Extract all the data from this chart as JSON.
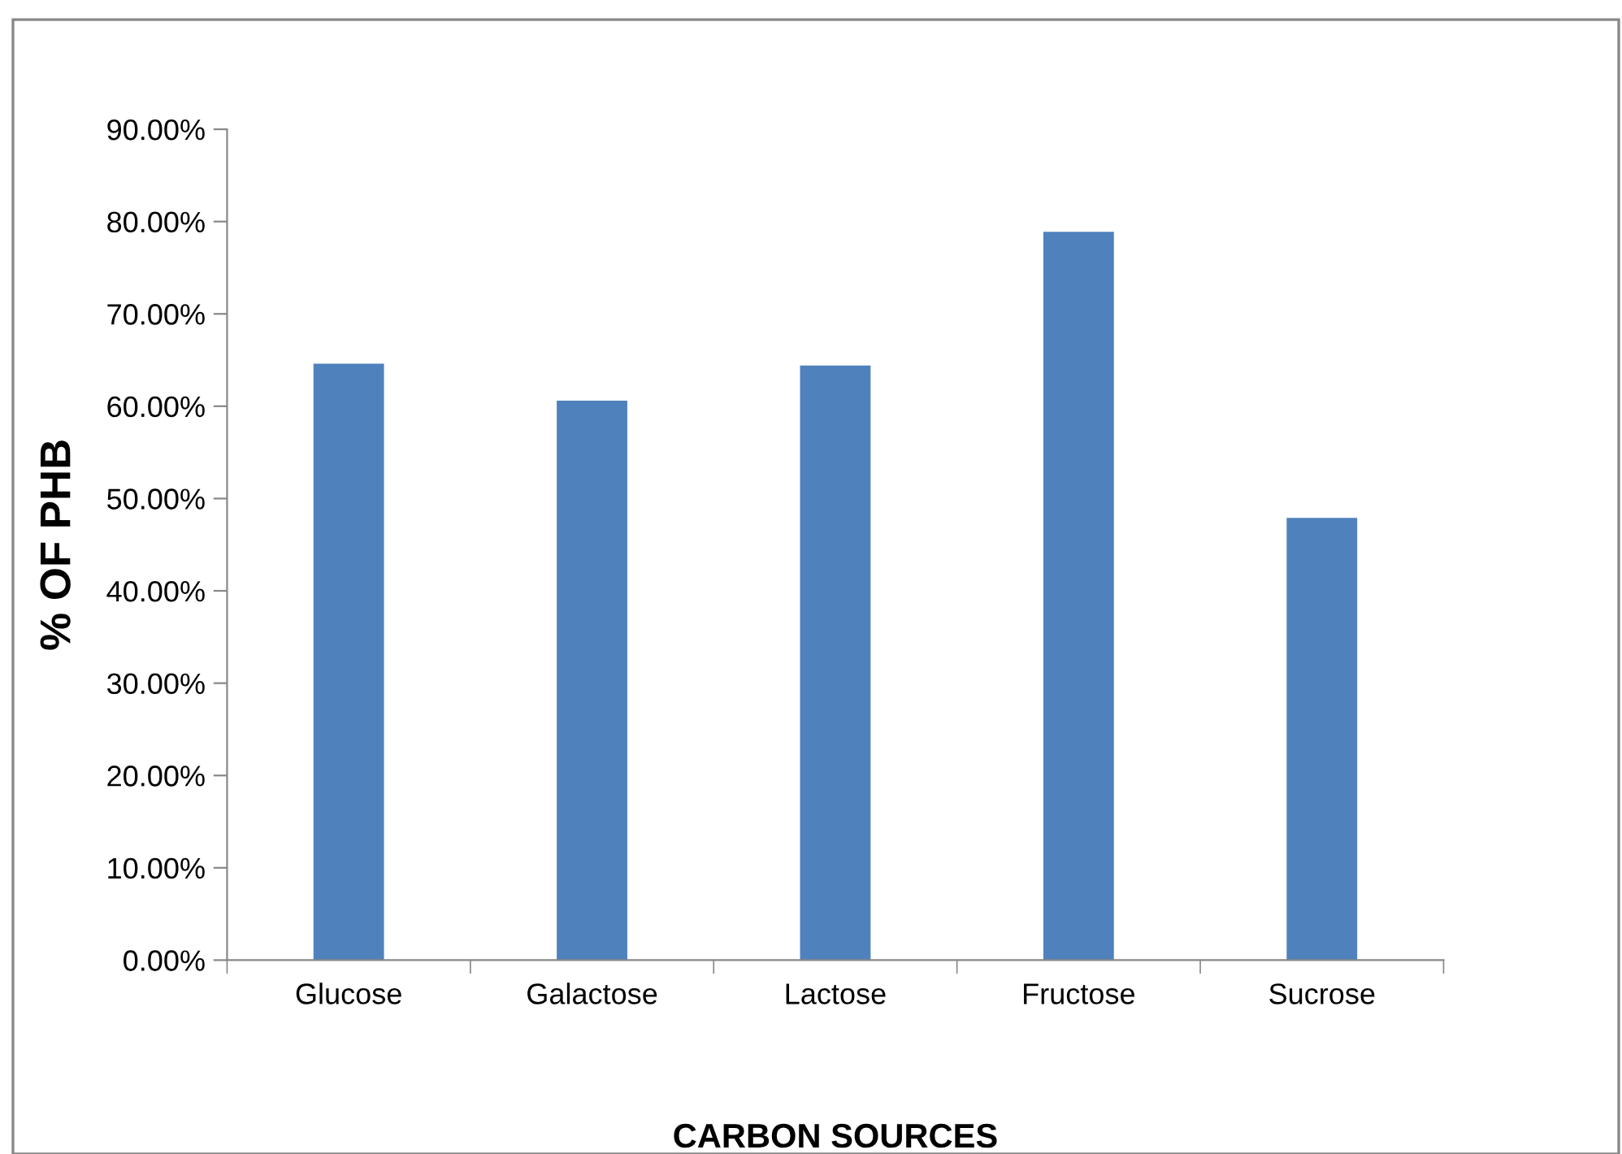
{
  "chart_data": {
    "type": "bar",
    "xlabel": "CARBON SOURCES",
    "ylabel": "% OF PHB",
    "categories": [
      "Glucose",
      "Galactose",
      "Lactose",
      "Fructose",
      "Sucrose"
    ],
    "values": [
      64.6,
      60.6,
      64.4,
      78.9,
      47.9
    ],
    "color": "#4f81bd",
    "ylim": [
      0,
      90
    ],
    "yticks": [
      {
        "value": 0,
        "label": "0.00%"
      },
      {
        "value": 10,
        "label": "10.00%"
      },
      {
        "value": 20,
        "label": "20.00%"
      },
      {
        "value": 30,
        "label": "30.00%"
      },
      {
        "value": 40,
        "label": "40.00%"
      },
      {
        "value": 50,
        "label": "50.00%"
      },
      {
        "value": 60,
        "label": "60.00%"
      },
      {
        "value": 70,
        "label": "70.00%"
      },
      {
        "value": 80,
        "label": "80.00%"
      },
      {
        "value": 90,
        "label": "90.00%"
      }
    ],
    "grid": false,
    "legend": false
  }
}
